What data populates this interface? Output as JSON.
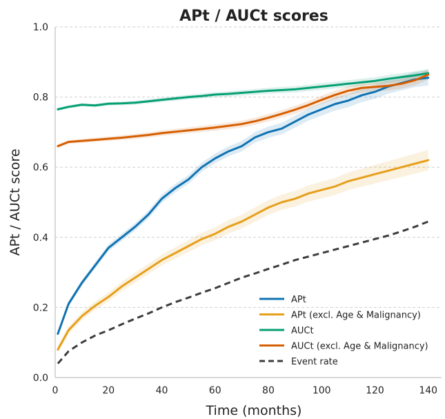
{
  "chart_data": {
    "type": "line",
    "title": "APt / AUCt scores",
    "xlabel": "Time (months)",
    "ylabel": "APt / AUCt score",
    "xlim": [
      0,
      145
    ],
    "ylim": [
      0.0,
      1.0
    ],
    "xticks": [
      0,
      20,
      40,
      60,
      80,
      100,
      120,
      140
    ],
    "yticks": [
      0.0,
      0.2,
      0.4,
      0.6,
      0.8,
      1.0
    ],
    "ytick_labels": [
      "0.0",
      "0.2",
      "0.4",
      "0.6",
      "0.8",
      "1.0"
    ],
    "grid": "horizontal dashed",
    "legend_position": "lower-right",
    "x": [
      1,
      5,
      10,
      15,
      20,
      25,
      30,
      35,
      40,
      45,
      50,
      55,
      60,
      65,
      70,
      75,
      80,
      85,
      90,
      95,
      100,
      105,
      110,
      115,
      120,
      125,
      130,
      135,
      140
    ],
    "series": [
      {
        "name": "APt",
        "color": "#0f72b2",
        "style": "solid",
        "band": 0.015,
        "values": [
          0.125,
          0.21,
          0.27,
          0.32,
          0.37,
          0.4,
          0.43,
          0.465,
          0.51,
          0.54,
          0.565,
          0.6,
          0.625,
          0.645,
          0.66,
          0.685,
          0.7,
          0.71,
          0.73,
          0.75,
          0.765,
          0.78,
          0.79,
          0.805,
          0.815,
          0.83,
          0.84,
          0.85,
          0.855
        ]
      },
      {
        "name": "APt (excl. Age & Malignancy)",
        "color": "#e69f1a",
        "style": "solid",
        "band": 0.02,
        "values": [
          0.08,
          0.135,
          0.175,
          0.205,
          0.23,
          0.26,
          0.285,
          0.31,
          0.335,
          0.355,
          0.375,
          0.395,
          0.41,
          0.43,
          0.445,
          0.465,
          0.485,
          0.5,
          0.51,
          0.525,
          0.535,
          0.545,
          0.56,
          0.57,
          0.58,
          0.59,
          0.6,
          0.61,
          0.62
        ]
      },
      {
        "name": "AUCt",
        "color": "#059f73",
        "style": "solid",
        "band": 0.008,
        "values": [
          0.765,
          0.772,
          0.778,
          0.776,
          0.781,
          0.782,
          0.784,
          0.788,
          0.792,
          0.796,
          0.8,
          0.803,
          0.807,
          0.809,
          0.812,
          0.815,
          0.818,
          0.82,
          0.822,
          0.826,
          0.83,
          0.834,
          0.838,
          0.842,
          0.846,
          0.852,
          0.857,
          0.862,
          0.868
        ]
      },
      {
        "name": "AUCt (excl. Age & Malignancy)",
        "color": "#d55e00",
        "style": "solid",
        "band": 0.01,
        "values": [
          0.66,
          0.672,
          0.675,
          0.678,
          0.681,
          0.684,
          0.688,
          0.692,
          0.697,
          0.701,
          0.705,
          0.709,
          0.713,
          0.718,
          0.723,
          0.731,
          0.741,
          0.752,
          0.764,
          0.777,
          0.792,
          0.806,
          0.818,
          0.826,
          0.829,
          0.832,
          0.838,
          0.848,
          0.864
        ]
      },
      {
        "name": "Event rate",
        "color": "#3c3c3c",
        "style": "dashed",
        "band": 0,
        "values": [
          0.04,
          0.075,
          0.1,
          0.12,
          0.135,
          0.152,
          0.168,
          0.183,
          0.2,
          0.215,
          0.228,
          0.242,
          0.255,
          0.27,
          0.285,
          0.297,
          0.31,
          0.322,
          0.335,
          0.345,
          0.355,
          0.365,
          0.375,
          0.385,
          0.395,
          0.405,
          0.417,
          0.43,
          0.445
        ]
      }
    ]
  }
}
